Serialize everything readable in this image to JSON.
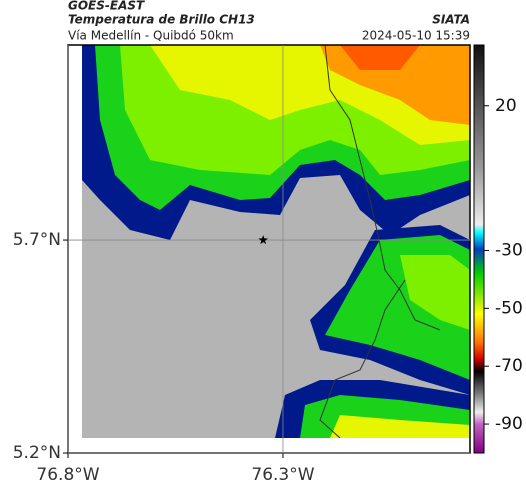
{
  "header": {
    "title": "GOES-EAST",
    "subtitle": "Temperatura de Brillo CH13",
    "location": "Vía Medellín - Quibdó 50km",
    "source": "SIATA",
    "datetime": "2024-05-10 15:39"
  },
  "map": {
    "xlim": [
      -76.8,
      -75.865
    ],
    "ylim": [
      5.2,
      6.158
    ],
    "xticks": [
      {
        "value": -76.8,
        "label": "76.8°W"
      },
      {
        "value": -76.3,
        "label": "76.3°W"
      }
    ],
    "yticks": [
      {
        "value": 5.7,
        "label": "5.7°N"
      },
      {
        "value": 5.2,
        "label": "5.2°N"
      }
    ],
    "grid": true,
    "marker": {
      "lon": -76.346,
      "lat": 5.7
    }
  },
  "colorbar": {
    "lim": [
      -100,
      41
    ],
    "ticks": [
      20,
      -30,
      -50,
      -70,
      -90
    ]
  }
}
